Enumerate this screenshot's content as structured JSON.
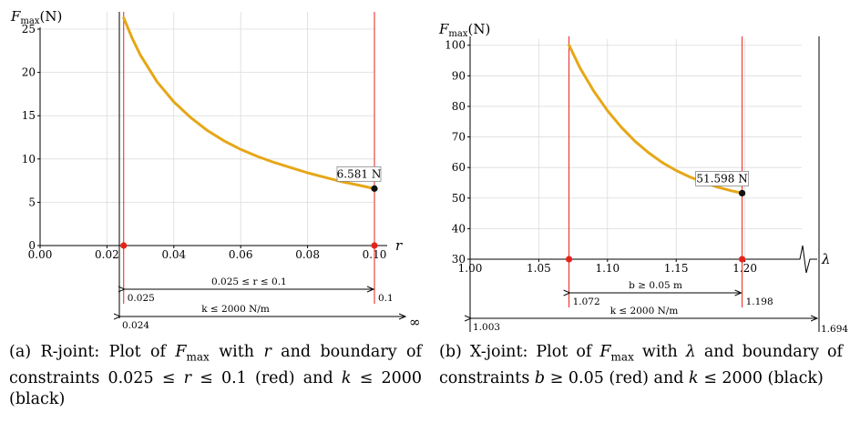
{
  "chart_data": [
    {
      "type": "line",
      "ylabel_var": "F",
      "ylabel_sub": "max",
      "ylabel_unit": "(N)",
      "xlabel": "r",
      "xlim": [
        0,
        0.1
      ],
      "ylim": [
        0,
        27
      ],
      "x_ticks": [
        "0.00",
        "0.02",
        "0.04",
        "0.06",
        "0.08",
        "0.10"
      ],
      "y_ticks": [
        "0",
        "5",
        "10",
        "15",
        "20",
        "25"
      ],
      "x_tick_values": [
        0,
        0.02,
        0.04,
        0.06,
        0.08,
        0.1
      ],
      "y_tick_values": [
        0,
        5,
        10,
        15,
        20,
        25
      ],
      "grid": true,
      "curve_color": "#e6a717",
      "series": [
        {
          "x": [
            0.025,
            0.0275,
            0.03,
            0.035,
            0.04,
            0.045,
            0.05,
            0.055,
            0.06,
            0.065,
            0.07,
            0.075,
            0.08,
            0.085,
            0.09,
            0.095,
            0.1
          ],
          "values": [
            26.3,
            24.0,
            22.0,
            18.9,
            16.6,
            14.8,
            13.3,
            12.1,
            11.1,
            10.3,
            9.6,
            9.0,
            8.4,
            7.9,
            7.4,
            7.0,
            6.581
          ]
        }
      ],
      "endpoint": {
        "x": 0.1,
        "y": 6.581,
        "label": "6.581 N"
      },
      "red_lines": [
        0.025,
        0.1
      ],
      "black_lines": [
        0.024
      ],
      "red_dots_x": [
        0.025,
        0.1
      ],
      "constraint_red": {
        "text": "0.025 ≤ r ≤ 0.1",
        "left": "0.025",
        "right": "0.1"
      },
      "constraint_black": {
        "text": "k ≤ 2000 N/m",
        "left": "0.024",
        "right": "∞"
      }
    },
    {
      "type": "line",
      "ylabel_var": "F",
      "ylabel_sub": "max",
      "ylabel_unit": "(N)",
      "xlabel": "λ",
      "xlim": [
        1.0,
        1.25
      ],
      "ylim": [
        30,
        102
      ],
      "x_ticks": [
        "1.00",
        "1.05",
        "1.10",
        "1.15",
        "1.20"
      ],
      "y_ticks": [
        "30",
        "40",
        "50",
        "60",
        "70",
        "80",
        "90",
        "100"
      ],
      "x_tick_values": [
        1.0,
        1.05,
        1.1,
        1.15,
        1.2
      ],
      "y_tick_values": [
        30,
        40,
        50,
        60,
        70,
        80,
        90,
        100
      ],
      "grid": true,
      "curve_color": "#e6a717",
      "series": [
        {
          "x": [
            1.072,
            1.08,
            1.09,
            1.1,
            1.11,
            1.12,
            1.13,
            1.14,
            1.15,
            1.16,
            1.17,
            1.18,
            1.19,
            1.198
          ],
          "values": [
            100.0,
            92.6,
            85.0,
            78.6,
            73.2,
            68.6,
            64.8,
            61.6,
            59.0,
            56.9,
            55.1,
            53.6,
            52.4,
            51.598
          ]
        }
      ],
      "endpoint": {
        "x": 1.198,
        "y": 51.598,
        "label": "51.598 N"
      },
      "red_lines": [
        1.072,
        1.198
      ],
      "red_dots_x": [
        1.072,
        1.198
      ],
      "constraint_red": {
        "text": "b ≥ 0.05 m",
        "left": "1.072",
        "right": "1.198"
      },
      "constraint_black": {
        "text": "k ≤ 2000 N/m",
        "left": "1.003",
        "right": "1.694"
      }
    }
  ],
  "captions": [
    {
      "p1": "(a) R-joint: Plot of ",
      "v1": "F",
      "s1": "max",
      "p2": " with ",
      "v2": "r",
      "p3": " and boundary of constraints 0.025 ≤ ",
      "v3": "r",
      "p4": " ≤ 0.1 (red) and ",
      "v4": "k",
      "p5": " ≤ 2000 (black)"
    },
    {
      "p1": "(b) X-joint: Plot of ",
      "v1": "F",
      "s1": "max",
      "p2": " with ",
      "v2": "λ",
      "p3": " and boundary of constraints ",
      "v3": "b",
      "p4": " ≥ 0.05 (red) and ",
      "v4": "k",
      "p5": " ≤ 2000 (black)"
    }
  ]
}
